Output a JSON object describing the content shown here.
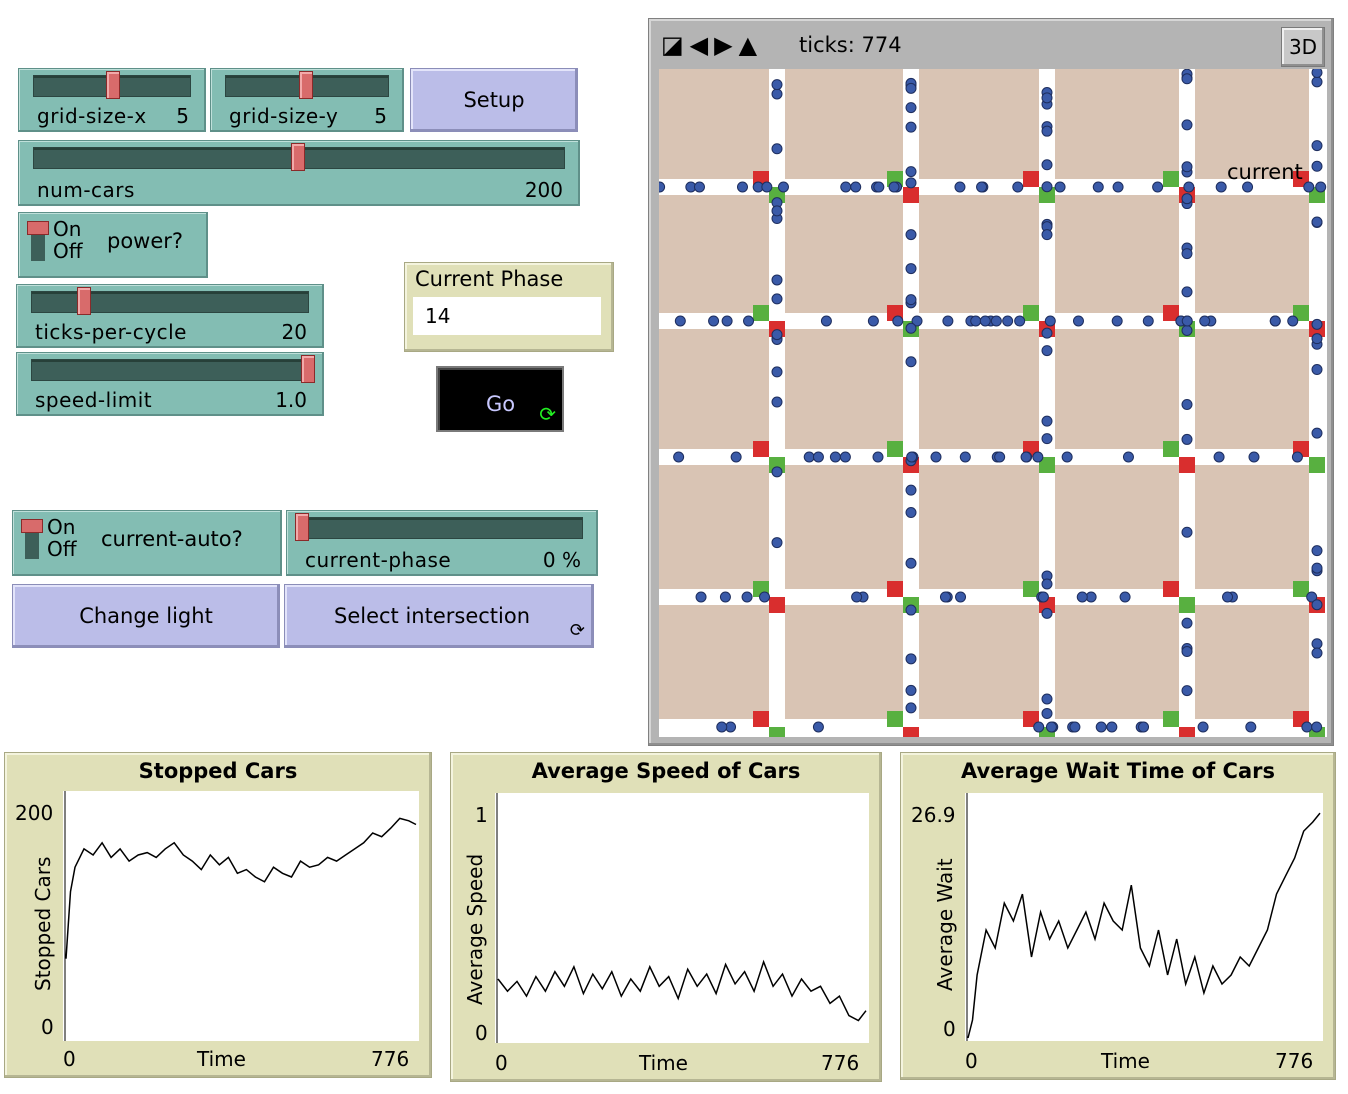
{
  "sliders": {
    "grid_size_x": {
      "label": "grid-size-x",
      "value": "5",
      "fraction": 0.5
    },
    "grid_size_y": {
      "label": "grid-size-y",
      "value": "5",
      "fraction": 0.5
    },
    "num_cars": {
      "label": "num-cars",
      "value": "200",
      "fraction": 0.5
    },
    "ticks_per_cycle": {
      "label": "ticks-per-cycle",
      "value": "20",
      "fraction": 0.18
    },
    "speed_limit": {
      "label": "speed-limit",
      "value": "1.0",
      "fraction": 1.0
    },
    "current_phase": {
      "label": "current-phase",
      "value": "0 %",
      "fraction": 0.0
    }
  },
  "buttons": {
    "setup": "Setup",
    "go": "Go",
    "change_light": "Change light",
    "select_intersection": "Select intersection",
    "view_3d": "3D"
  },
  "switches": {
    "power": {
      "name": "power?",
      "on": "On",
      "off": "Off",
      "state": "On"
    },
    "current_auto": {
      "name": "current-auto?",
      "on": "On",
      "off": "Off",
      "state": "On"
    }
  },
  "monitor": {
    "label": "Current Phase",
    "value": "14"
  },
  "view": {
    "ticks_text": "ticks: 774",
    "world_label": "current",
    "colors": {
      "patch": "#d9c4b4",
      "road": "#ffffff",
      "red": "#d92e2e",
      "green": "#58b040",
      "car": "#3a5aa8"
    }
  },
  "plots": [
    {
      "title": "Stopped Cars",
      "ylabel": "Stopped Cars",
      "xlabel": "Time",
      "xmin": "0",
      "xmax": "776",
      "ymin": "0",
      "ymax": "200",
      "chart_data": {
        "type": "line",
        "title": "Stopped Cars",
        "xlabel": "Time",
        "ylabel": "Stopped Cars",
        "xlim": [
          0,
          776
        ],
        "ylim": [
          0,
          200
        ],
        "x": [
          0,
          10,
          20,
          40,
          60,
          80,
          100,
          120,
          140,
          160,
          180,
          200,
          220,
          240,
          260,
          280,
          300,
          320,
          340,
          360,
          380,
          400,
          420,
          440,
          460,
          480,
          500,
          520,
          540,
          560,
          580,
          600,
          620,
          640,
          660,
          680,
          700,
          720,
          740,
          760,
          776
        ],
        "series": [
          {
            "values": [
              65,
              120,
              140,
              155,
              150,
              160,
              148,
              155,
              145,
              150,
              152,
              148,
              155,
              160,
              150,
              145,
              138,
              150,
              142,
              148,
              135,
              138,
              132,
              128,
              140,
              135,
              132,
              145,
              140,
              142,
              148,
              145,
              150,
              155,
              160,
              168,
              165,
              172,
              180,
              178,
              175
            ]
          }
        ]
      }
    },
    {
      "title": "Average Speed of Cars",
      "ylabel": "Average Speed",
      "xlabel": "Time",
      "xmin": "0",
      "xmax": "776",
      "ymin": "0",
      "ymax": "1",
      "chart_data": {
        "type": "line",
        "title": "Average Speed of Cars",
        "xlabel": "Time",
        "ylabel": "Average Speed",
        "xlim": [
          0,
          776
        ],
        "ylim": [
          0,
          1
        ],
        "x": [
          0,
          20,
          40,
          60,
          80,
          100,
          120,
          140,
          160,
          180,
          200,
          220,
          240,
          260,
          280,
          300,
          320,
          340,
          360,
          380,
          400,
          420,
          440,
          460,
          480,
          500,
          520,
          540,
          560,
          580,
          600,
          620,
          640,
          660,
          680,
          700,
          720,
          740,
          760,
          776
        ],
        "series": [
          {
            "values": [
              0.25,
              0.2,
              0.24,
              0.18,
              0.26,
              0.2,
              0.28,
              0.22,
              0.3,
              0.19,
              0.27,
              0.21,
              0.28,
              0.18,
              0.25,
              0.2,
              0.3,
              0.22,
              0.26,
              0.17,
              0.29,
              0.22,
              0.27,
              0.19,
              0.31,
              0.23,
              0.28,
              0.2,
              0.32,
              0.22,
              0.27,
              0.18,
              0.25,
              0.2,
              0.22,
              0.15,
              0.18,
              0.1,
              0.08,
              0.12
            ]
          }
        ]
      }
    },
    {
      "title": "Average Wait Time of Cars",
      "ylabel": "Average Wait",
      "xlabel": "Time",
      "xmin": "0",
      "xmax": "776",
      "ymin": "0",
      "ymax": "26.9",
      "chart_data": {
        "type": "line",
        "title": "Average Wait Time of Cars",
        "xlabel": "Time",
        "ylabel": "Average Wait",
        "xlim": [
          0,
          776
        ],
        "ylim": [
          0,
          26.9
        ],
        "x": [
          0,
          10,
          20,
          40,
          60,
          80,
          100,
          120,
          140,
          160,
          180,
          200,
          220,
          240,
          260,
          280,
          300,
          320,
          340,
          360,
          380,
          400,
          420,
          440,
          460,
          480,
          500,
          520,
          540,
          560,
          580,
          600,
          620,
          640,
          660,
          680,
          700,
          720,
          740,
          760,
          776
        ],
        "series": [
          {
            "values": [
              0,
              2,
              7,
              12,
              10,
              15,
              13,
              16,
              9,
              14,
              11,
              13,
              10,
              12,
              14,
              11,
              15,
              13,
              12,
              17,
              10,
              8,
              12,
              7,
              11,
              6,
              9,
              5,
              8,
              6,
              7,
              9,
              8,
              10,
              12,
              16,
              18,
              20,
              23,
              24,
              25
            ]
          }
        ]
      }
    }
  ]
}
